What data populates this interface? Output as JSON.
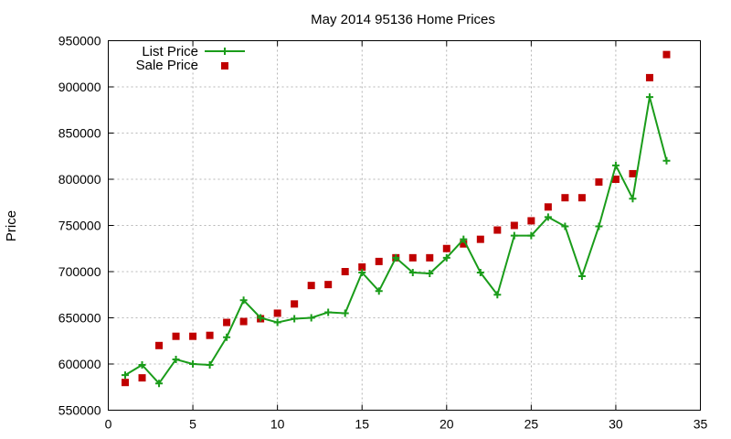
{
  "chart_data": {
    "type": "line",
    "title": "May 2014 95136 Home Prices",
    "xlabel": "",
    "ylabel": "Price",
    "xlim": [
      0,
      35
    ],
    "ylim": [
      550000,
      950000
    ],
    "xticks": [
      0,
      5,
      10,
      15,
      20,
      25,
      30,
      35
    ],
    "yticks": [
      550000,
      600000,
      650000,
      700000,
      750000,
      800000,
      850000,
      900000,
      950000
    ],
    "grid": true,
    "legend_position": "top-left",
    "series": [
      {
        "name": "List Price",
        "style": "line-with-plus-markers",
        "color": "#1a9c1a",
        "x": [
          1,
          2,
          3,
          4,
          5,
          6,
          7,
          8,
          9,
          10,
          11,
          12,
          13,
          14,
          15,
          16,
          17,
          18,
          19,
          20,
          21,
          22,
          23,
          24,
          25,
          26,
          27,
          28,
          29,
          30,
          31,
          32,
          33
        ],
        "values": [
          588000,
          599000,
          579000,
          605000,
          600000,
          599000,
          629000,
          669000,
          650000,
          645000,
          649000,
          650000,
          656000,
          655000,
          699000,
          679000,
          715000,
          699000,
          698000,
          715000,
          735000,
          699000,
          675000,
          739000,
          739000,
          759000,
          749000,
          695000,
          749000,
          815000,
          779000,
          889000,
          820000
        ]
      },
      {
        "name": "Sale Price",
        "style": "square-markers",
        "color": "#c00000",
        "x": [
          1,
          2,
          3,
          4,
          5,
          6,
          7,
          8,
          9,
          10,
          11,
          12,
          13,
          14,
          15,
          16,
          17,
          18,
          19,
          20,
          21,
          22,
          23,
          24,
          25,
          26,
          27,
          28,
          29,
          30,
          31,
          32,
          33
        ],
        "values": [
          580000,
          585000,
          620000,
          630000,
          630000,
          631000,
          645000,
          646000,
          649000,
          655000,
          665000,
          685000,
          686000,
          700000,
          705000,
          711000,
          715000,
          715000,
          715000,
          725000,
          730000,
          735000,
          745000,
          750000,
          755000,
          770000,
          780000,
          780000,
          797000,
          800000,
          806000,
          910000,
          935000
        ]
      }
    ]
  }
}
